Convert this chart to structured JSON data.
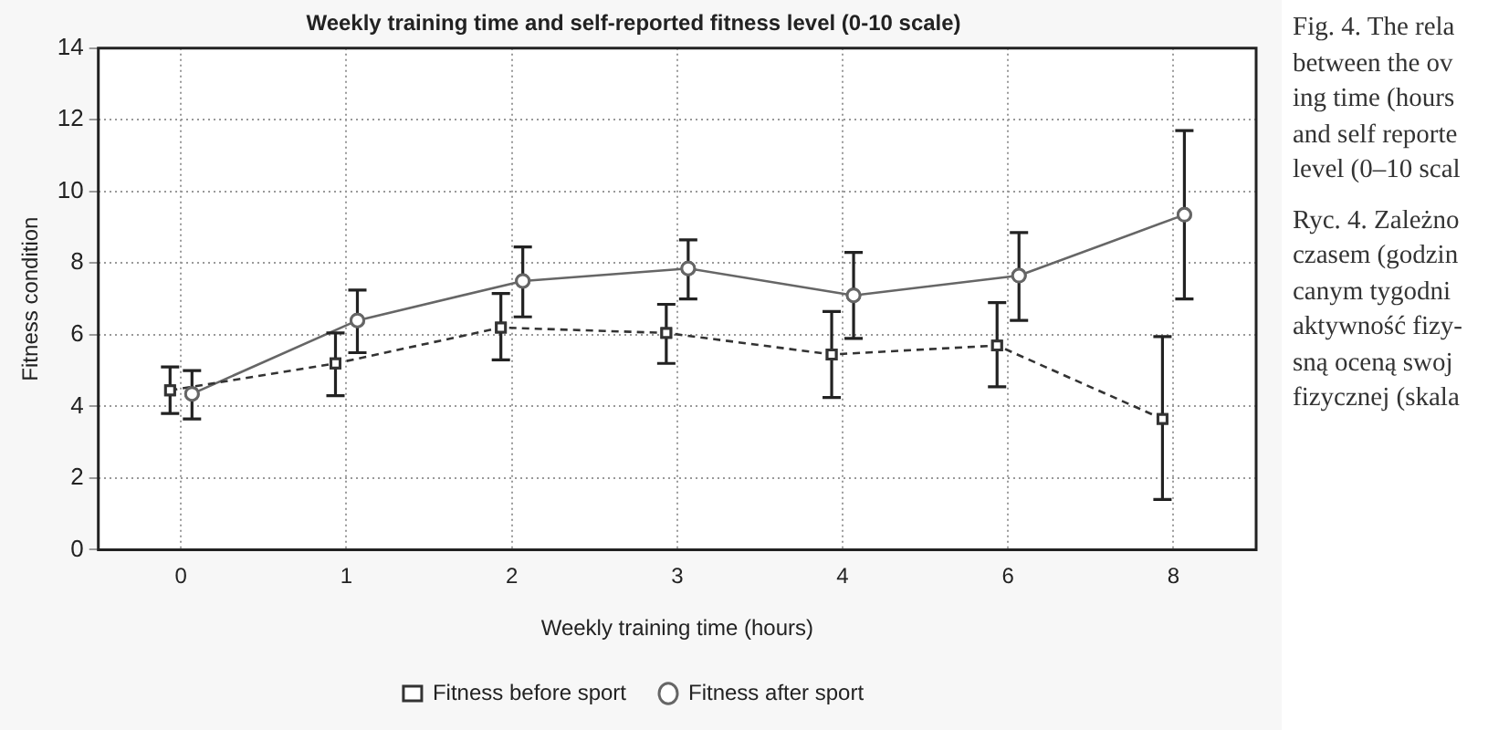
{
  "chart_data": {
    "type": "line",
    "title": "Weekly training time and self-reported fitness level (0-10 scale)",
    "xlabel": "Weekly training time (hours)",
    "ylabel": "Fitness condition",
    "categories": [
      "0",
      "1",
      "2",
      "3",
      "4",
      "6",
      "8"
    ],
    "series": [
      {
        "name": "Fitness before sport",
        "color": "#333333",
        "marker": "square",
        "line_style": "dashed",
        "values": [
          4.45,
          5.2,
          6.2,
          6.05,
          5.45,
          5.7,
          3.65
        ],
        "errors": [
          [
            3.8,
            5.1
          ],
          [
            4.3,
            6.05
          ],
          [
            5.3,
            7.15
          ],
          [
            5.2,
            6.85
          ],
          [
            4.25,
            6.65
          ],
          [
            4.55,
            6.9
          ],
          [
            1.4,
            5.95
          ]
        ]
      },
      {
        "name": "Fitness after sport",
        "color": "#666666",
        "marker": "circle",
        "line_style": "solid",
        "values": [
          4.35,
          6.4,
          7.5,
          7.85,
          7.1,
          7.65,
          9.35
        ],
        "errors": [
          [
            3.65,
            5.0
          ],
          [
            5.5,
            7.25
          ],
          [
            6.5,
            8.45
          ],
          [
            7.0,
            8.65
          ],
          [
            5.9,
            8.3
          ],
          [
            6.4,
            8.85
          ],
          [
            7.0,
            11.7
          ]
        ]
      }
    ],
    "ylim": [
      0,
      14
    ],
    "yticks": [
      0,
      2,
      4,
      6,
      8,
      10,
      12,
      14
    ],
    "grid": true,
    "legend": "bottom",
    "annotations": [
      "Fig. 4. The rela\nbetween the ov\ning time (hours\nand self reporte\nlevel (0–10 scal",
      "Ryc. 4. Zależno\nczasem (godzin\ncanym tygodni\naktywność fizy-\nsną oceną swoj\nfizycznej (skala"
    ]
  }
}
